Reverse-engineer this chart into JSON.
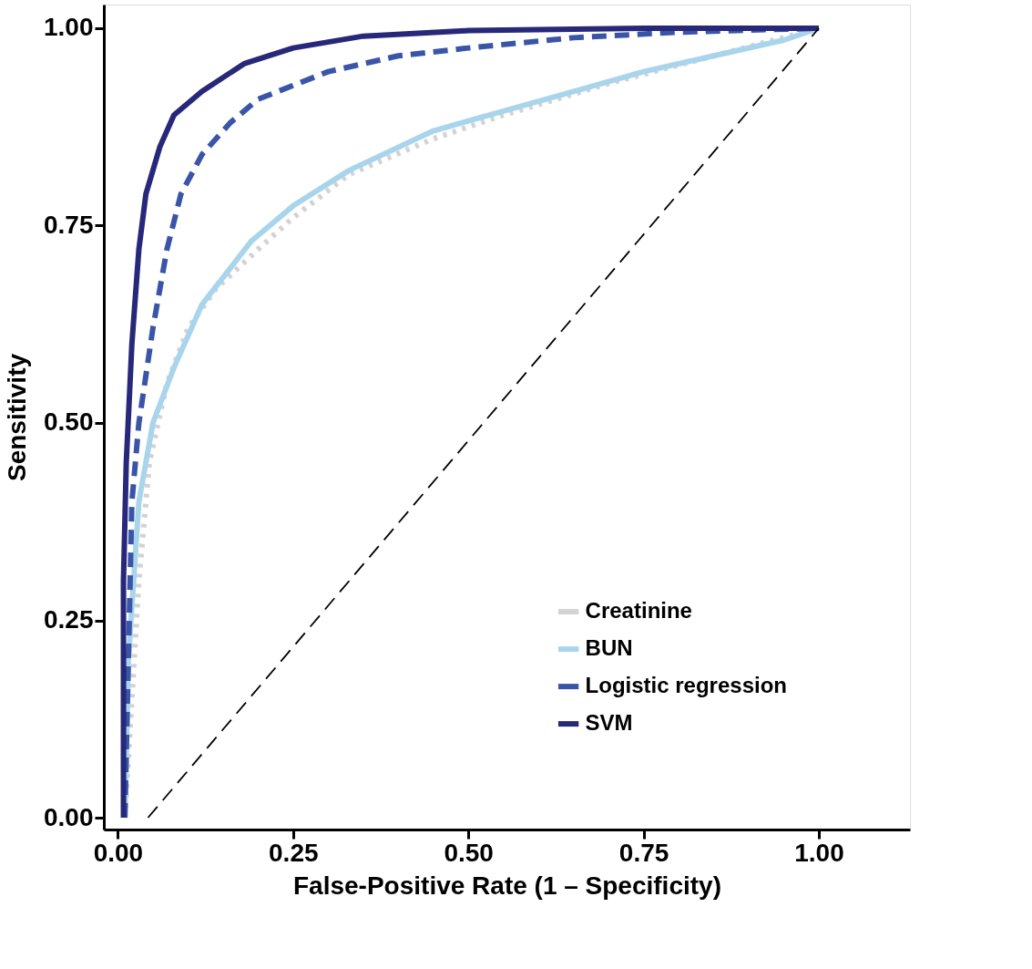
{
  "chart_data": {
    "type": "line",
    "xlabel": "False-Positive Rate (1 – Specificity)",
    "ylabel": "Sensitivity",
    "xlim": [
      -0.02,
      1.13
    ],
    "ylim": [
      -0.015,
      1.03
    ],
    "xticks": [
      {
        "value": 0,
        "label": "0.00"
      },
      {
        "value": 0.25,
        "label": "0.25"
      },
      {
        "value": 0.5,
        "label": "0.50"
      },
      {
        "value": 0.75,
        "label": "0.75"
      },
      {
        "value": 1,
        "label": "1.00"
      }
    ],
    "yticks": [
      {
        "value": 0,
        "label": "0.00"
      },
      {
        "value": 0.25,
        "label": "0.25"
      },
      {
        "value": 0.5,
        "label": "0.50"
      },
      {
        "value": 0.75,
        "label": "0.75"
      },
      {
        "value": 1,
        "label": "1.00"
      }
    ],
    "grid": false,
    "legend": "bottom right",
    "marker": "none",
    "series": [
      {
        "name": "Creatinine",
        "color": "#d3d3d3",
        "line_style": "dotted",
        "x": [
          0.01,
          0.02,
          0.03,
          0.045,
          0.07,
          0.1,
          0.14,
          0.2,
          0.25,
          0.33,
          0.45,
          0.55,
          0.7,
          0.85,
          1
        ],
        "values": [
          0,
          0.15,
          0.3,
          0.45,
          0.55,
          0.62,
          0.67,
          0.72,
          0.76,
          0.815,
          0.86,
          0.89,
          0.93,
          0.965,
          1
        ]
      },
      {
        "name": "BUN",
        "color": "#a9d5ec",
        "line_style": "solid",
        "x": [
          0.01,
          0.015,
          0.03,
          0.05,
          0.08,
          0.12,
          0.19,
          0.25,
          0.33,
          0.45,
          0.55,
          0.65,
          0.75,
          0.85,
          0.95,
          1
        ],
        "values": [
          0,
          0.2,
          0.4,
          0.5,
          0.57,
          0.65,
          0.73,
          0.775,
          0.82,
          0.87,
          0.895,
          0.92,
          0.945,
          0.965,
          0.985,
          1
        ]
      },
      {
        "name": "Logistic regression",
        "color": "#3a55a8",
        "line_style": "dashed",
        "x": [
          0.01,
          0.02,
          0.03,
          0.05,
          0.07,
          0.09,
          0.12,
          0.16,
          0.2,
          0.3,
          0.4,
          0.5,
          0.65,
          0.8,
          1
        ],
        "values": [
          0,
          0.4,
          0.5,
          0.62,
          0.72,
          0.79,
          0.84,
          0.88,
          0.91,
          0.945,
          0.965,
          0.975,
          0.988,
          0.995,
          1
        ]
      },
      {
        "name": "SVM",
        "color": "#27287a",
        "line_style": "solid",
        "x": [
          0.008,
          0.008,
          0.012,
          0.02,
          0.03,
          0.04,
          0.06,
          0.08,
          0.12,
          0.18,
          0.25,
          0.35,
          0.5,
          0.75,
          1
        ],
        "values": [
          0,
          0.3,
          0.45,
          0.6,
          0.72,
          0.79,
          0.85,
          0.89,
          0.92,
          0.955,
          0.975,
          0.99,
          0.997,
          1,
          1
        ]
      },
      {
        "color": "#000000",
        "line_style": "dashed",
        "x": [
          0.043,
          1
        ],
        "values": [
          0,
          1
        ]
      }
    ]
  }
}
